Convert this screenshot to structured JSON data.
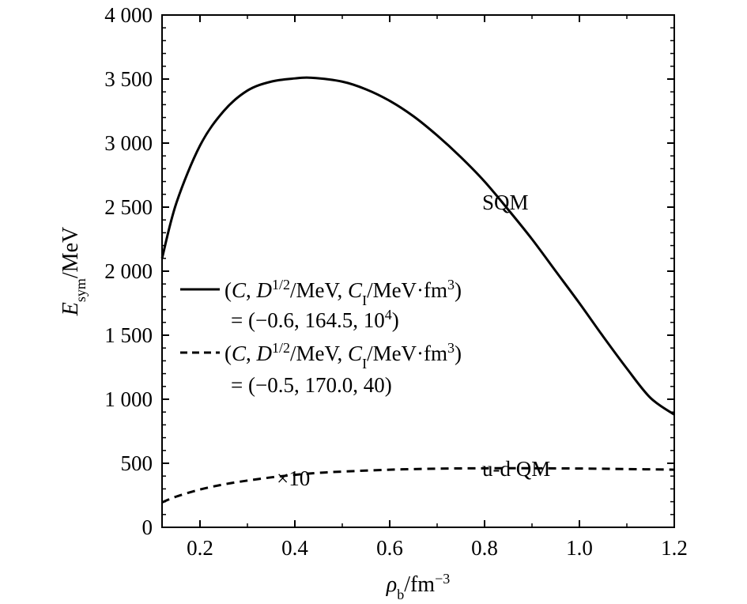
{
  "chart_data": {
    "type": "line",
    "xlabel": {
      "main": "ρ",
      "sub": "b",
      "unit": "/fm",
      "sup": "−3"
    },
    "ylabel": {
      "main": "E",
      "sub": "sym",
      "unit": "/MeV"
    },
    "xlim": [
      0.12,
      1.2
    ],
    "ylim": [
      0,
      4000
    ],
    "xticks": [
      0.2,
      0.4,
      0.6,
      0.8,
      1.0,
      1.2
    ],
    "xtick_labels": [
      "0.2",
      "0.4",
      "0.6",
      "0.8",
      "1.0",
      "1.2"
    ],
    "yticks": [
      0,
      500,
      1000,
      1500,
      2000,
      2500,
      3000,
      3500,
      4000
    ],
    "ytick_labels": [
      "0",
      "500",
      "1 000",
      "1 500",
      "2 000",
      "2 500",
      "3 000",
      "3 500",
      "4 000"
    ],
    "grid": false,
    "legend_position": "middle-left",
    "series": [
      {
        "style": "solid",
        "legend": {
          "line1": {
            "p1": "(",
            "c": "C",
            "p2": ", ",
            "d": "D",
            "dsup": "1/2",
            "p3": "/MeV, ",
            "ci": "C",
            "cisub": "I",
            "p4": "/MeV·fm",
            "p4sup": "3",
            "p5": ")"
          },
          "line2": {
            "text": "= (−0.6, 164.5, 10",
            "sup": "4",
            "end": ")"
          }
        },
        "annotation": "SQM",
        "x": [
          0.12,
          0.15,
          0.2,
          0.25,
          0.3,
          0.35,
          0.4,
          0.435,
          0.5,
          0.55,
          0.6,
          0.65,
          0.7,
          0.75,
          0.8,
          0.85,
          0.9,
          0.95,
          1.0,
          1.05,
          1.1,
          1.15,
          1.2
        ],
        "values": [
          2100,
          2530,
          2980,
          3250,
          3410,
          3480,
          3505,
          3510,
          3480,
          3420,
          3330,
          3210,
          3060,
          2890,
          2700,
          2480,
          2250,
          2000,
          1750,
          1490,
          1240,
          1010,
          880
        ]
      },
      {
        "style": "dashed",
        "legend": {
          "line1": {
            "p1": "(",
            "c": "C",
            "p2": ", ",
            "d": "D",
            "dsup": "1/2",
            "p3": "/MeV, ",
            "ci": "C",
            "cisub": "I",
            "p4": "/MeV·fm",
            "p4sup": "3",
            "p5": ")"
          },
          "line2": {
            "text": "= (−0.5, 170.0, 40",
            "sup": "",
            "end": ")"
          }
        },
        "annotation": "u-d QM",
        "scale_note": "×10",
        "x": [
          0.12,
          0.15,
          0.2,
          0.25,
          0.3,
          0.35,
          0.4,
          0.45,
          0.5,
          0.6,
          0.7,
          0.8,
          0.9,
          1.0,
          1.1,
          1.2
        ],
        "values": [
          195,
          240,
          295,
          335,
          365,
          390,
          410,
          425,
          435,
          450,
          458,
          461,
          461,
          459,
          455,
          450
        ]
      }
    ]
  }
}
